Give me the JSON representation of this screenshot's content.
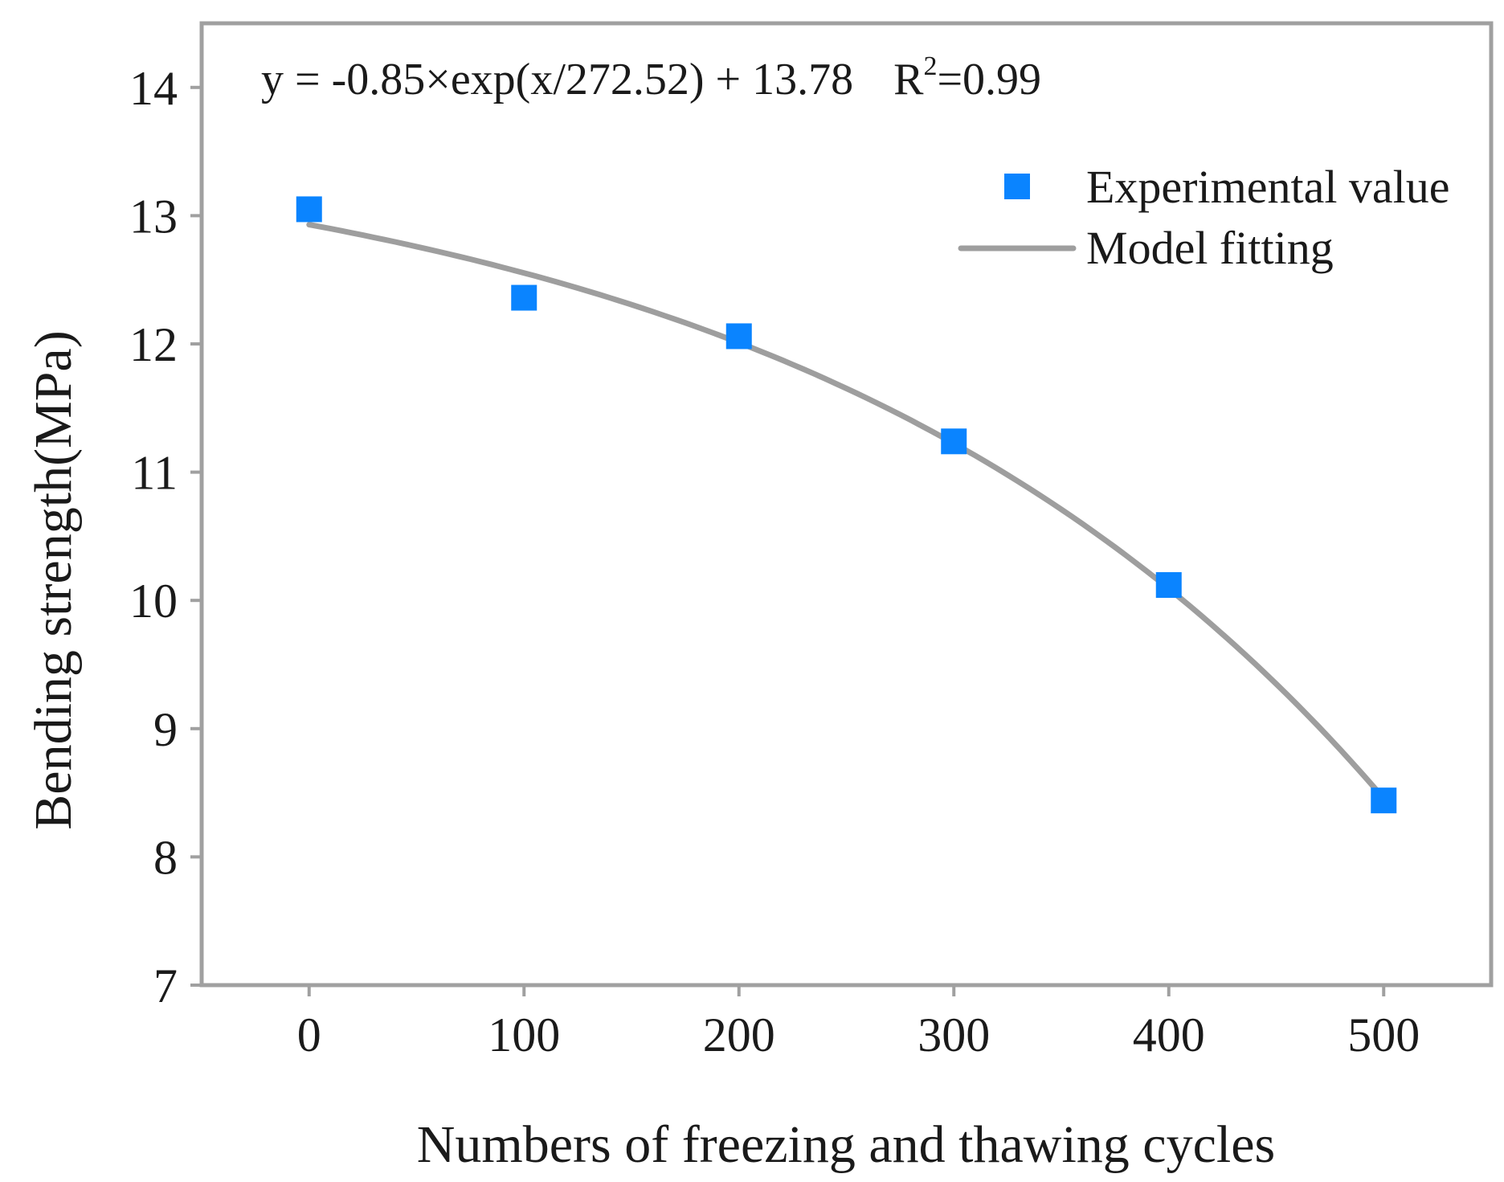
{
  "chart_data": {
    "type": "scatter",
    "title": "",
    "xlabel": "Numbers of freezing and thawing cycles",
    "ylabel": "Bending strength(MPa)",
    "xlim": [
      -50,
      550
    ],
    "ylim": [
      7,
      14.5
    ],
    "xticks": [
      "0",
      "100",
      "200",
      "300",
      "400",
      "500"
    ],
    "xtick_values": [
      0,
      100,
      200,
      300,
      400,
      500
    ],
    "yticks": [
      "7",
      "8",
      "9",
      "10",
      "11",
      "12",
      "13",
      "14"
    ],
    "ytick_values": [
      7,
      8,
      9,
      10,
      11,
      12,
      13,
      14
    ],
    "grid": false,
    "series": [
      {
        "name": "Experimental value",
        "kind": "scatter",
        "marker": "square",
        "color": "#0a84ff",
        "x": [
          0,
          100,
          200,
          300,
          400,
          500
        ],
        "y": [
          13.05,
          12.36,
          12.06,
          11.24,
          10.12,
          8.44
        ]
      },
      {
        "name": "Model fitting",
        "kind": "line",
        "color": "#9e9e9e",
        "equation": {
          "a": -0.85,
          "b": 272.52,
          "c": 13.78
        },
        "x_range": [
          0,
          500
        ]
      }
    ],
    "equation_text": "y = -0.85×exp(x/272.52) + 13.78",
    "r2_prefix": "R",
    "r2_sup": "2",
    "r2_value": "=0.99",
    "legend": {
      "position": "top-right",
      "entries": [
        "Experimental value",
        "Model fitting"
      ]
    },
    "colors": {
      "frame": "#a0a0a0",
      "marker": "#0a84ff",
      "fit_line": "#9e9e9e",
      "text": "#1a1a1a"
    }
  }
}
